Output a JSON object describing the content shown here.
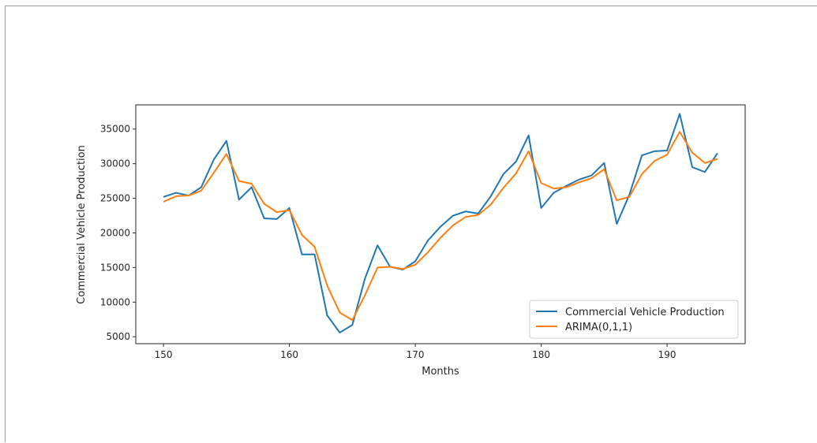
{
  "chart_data": {
    "type": "line",
    "xlabel": "Months",
    "ylabel": "Commercial Vehicle Production",
    "xlim": [
      147.8,
      196.2
    ],
    "ylim": [
      4000,
      38500
    ],
    "xticks": [
      150,
      160,
      170,
      180,
      190
    ],
    "yticks": [
      5000,
      10000,
      15000,
      20000,
      25000,
      30000,
      35000
    ],
    "grid": false,
    "legend_position": "lower-right",
    "x": [
      150,
      151,
      152,
      153,
      154,
      155,
      156,
      157,
      158,
      159,
      160,
      161,
      162,
      163,
      164,
      165,
      166,
      167,
      168,
      169,
      170,
      171,
      172,
      173,
      174,
      175,
      176,
      177,
      178,
      179,
      180,
      181,
      182,
      183,
      184,
      185,
      186,
      187,
      188,
      189,
      190,
      191,
      192,
      193,
      194
    ],
    "series": [
      {
        "name": "Commercial Vehicle Production",
        "color": "#1f77b4",
        "values": [
          25200,
          25800,
          25400,
          26600,
          30600,
          33300,
          24800,
          26600,
          22100,
          22000,
          23600,
          16900,
          16900,
          8100,
          5600,
          6700,
          13400,
          18200,
          15100,
          14700,
          15900,
          18900,
          20900,
          22500,
          23100,
          22800,
          25300,
          28500,
          30300,
          34100,
          23600,
          25800,
          26800,
          27700,
          28300,
          30100,
          21300,
          25500,
          31200,
          31800,
          31900,
          37200,
          29500,
          28800,
          31500
        ],
        "values_line": [
          25200,
          25800,
          25400,
          26600,
          30600,
          33300,
          24800,
          26600,
          22100,
          22000,
          23600,
          16900,
          16900,
          8100,
          5600,
          6700,
          13400,
          18200,
          15100,
          14700,
          15900,
          18900,
          20900,
          22500,
          23100,
          22800,
          25300,
          28500,
          30300,
          34100,
          23600,
          25800,
          26800,
          27700,
          28300,
          30100,
          21300,
          25500,
          31200,
          31800,
          31900,
          37200,
          29500,
          28800,
          31500
        ]
      },
      {
        "name": "ARIMA(0,1,1)",
        "color": "#ff7f0e",
        "values": [
          24500,
          25300,
          25400,
          26100,
          28700,
          31400,
          27500,
          27100,
          24200,
          23000,
          23300,
          19700,
          18000,
          12400,
          8500,
          7400,
          11000,
          15000,
          15100,
          14800,
          15400,
          17200,
          19300,
          21100,
          22300,
          22600,
          24100,
          26500,
          28600,
          31800,
          27200,
          26400,
          26600,
          27300,
          27900,
          29200,
          24700,
          25200,
          28500,
          30400,
          31300,
          34600,
          31600,
          30100,
          30700
        ]
      }
    ]
  }
}
